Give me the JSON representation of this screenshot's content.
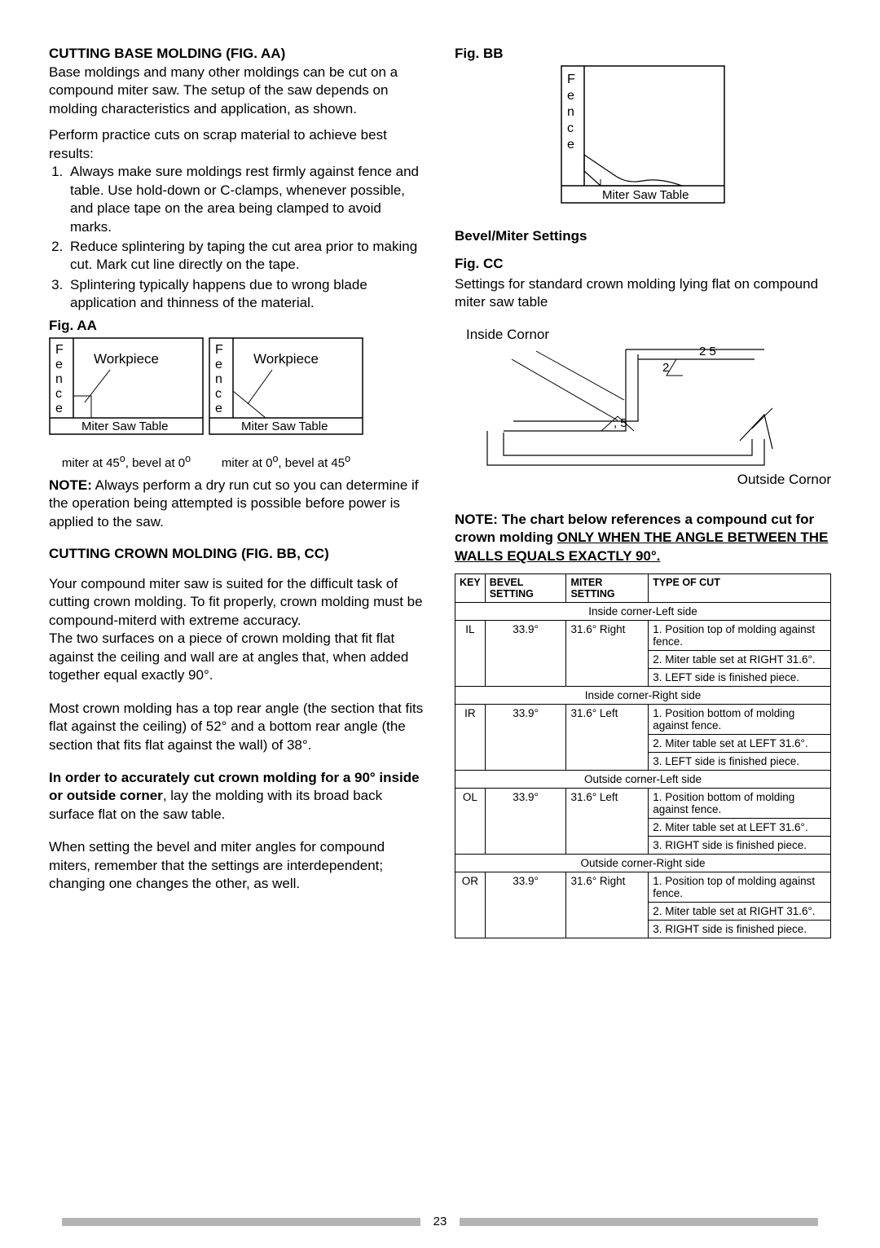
{
  "left": {
    "h1": "CUTTING BASE MOLDING (FIG. AA)",
    "p1": "Base moldings and many other moldings can be cut on a compound miter saw. The setup of the saw depends on molding characteristics and application, as shown.",
    "p2": "Perform practice cuts on scrap material to achieve best results:",
    "list": [
      "Always make sure moldings rest firmly against fence and table. Use hold-down or C-clamps, whenever possible, and place tape on the area being clamped to avoid marks.",
      "Reduce splintering by taping the cut area prior to making cut. Mark cut line directly on the tape.",
      "Splintering typically happens due to wrong blade application and thinness of the material."
    ],
    "figAA": "Fig. AA",
    "diagram_common": {
      "fenceLetters": [
        "F",
        "e",
        "n",
        "c",
        "e"
      ],
      "workpiece": "Workpiece",
      "table": "Miter Saw Table"
    },
    "cap1a": "miter at 45",
    "cap1b": ", bevel at 0",
    "cap2a": "miter at 0",
    "cap2b": ", bevel at 45",
    "degsup": "o",
    "noteBold": "NOTE:",
    "note": " Always perform a dry run cut so you can determine if the operation being attempted is possible before power is applied to the saw.",
    "h2": "CUTTING CROWN MOLDING (FIG. BB, CC)",
    "p3": "Your compound miter saw is suited for the difficult task of cutting crown molding. To fit properly, crown molding must be compound-miterd with extreme accuracy.",
    "p4": "The two surfaces on a piece of crown molding that fit flat against the ceiling and wall are at angles that, when added together equal exactly 90°.",
    "p5": "Most crown molding has a top rear angle (the section that fits flat against the ceiling) of 52° and a bottom rear angle (the section that fits flat against the wall) of 38°.",
    "p6a": "In order to accurately cut crown molding for a 90° inside or outside corner",
    "p6b": ", lay the molding with its broad back surface flat on the saw table.",
    "p7": "When setting the bevel and miter angles for compound miters, remember that the settings are interdependent; changing one changes the other, as well."
  },
  "right": {
    "figBB": "Fig. BB",
    "bm": "Bevel/Miter Settings",
    "figCC": "Fig. CC",
    "ccText": "Settings for standard crown molding lying flat on compound miter saw table",
    "inside": "Inside Cornor",
    "outside": "Outside Cornor",
    "angle25": "2 5",
    "angle5": ", 5",
    "angle2": "2",
    "noteLine1": "NOTE: The chart below references a compound cut for crown molding ",
    "noteOnly": "ONLY WHEN THE ANGLE BETWEEN THE WALLS EQUALS EXACTLY 90°.",
    "table": {
      "headers": [
        "KEY",
        "BEVEL SETTING",
        "MITER SETTING",
        "TYPE OF CUT"
      ],
      "sections": [
        {
          "title": "Inside corner-Left side",
          "key": "IL",
          "bevel": "33.9°",
          "miter": "31.6° Right",
          "steps": [
            "1. Position top of molding against fence.",
            "2. Miter table set at RIGHT 31.6°.",
            "3. LEFT side is finished piece."
          ]
        },
        {
          "title": "Inside corner-Right side",
          "key": "IR",
          "bevel": "33.9°",
          "miter": "31.6° Left",
          "steps": [
            "1. Position bottom of molding against fence.",
            "2. Miter table set at LEFT 31.6°.",
            "3. LEFT side is finished piece."
          ]
        },
        {
          "title": "Outside corner-Left side",
          "key": "OL",
          "bevel": "33.9°",
          "miter": "31.6° Left",
          "steps": [
            "1. Position bottom of molding against fence.",
            "2. Miter table set at LEFT 31.6°.",
            "3. RIGHT side is finished piece."
          ]
        },
        {
          "title": "Outside corner-Right side",
          "key": "OR",
          "bevel": "33.9°",
          "miter": "31.6° Right",
          "steps": [
            "1. Position top of molding against fence.",
            "2. Miter table set at RIGHT 31.6°.",
            "3. RIGHT side is finished piece."
          ]
        }
      ]
    }
  },
  "pageNumber": "23"
}
